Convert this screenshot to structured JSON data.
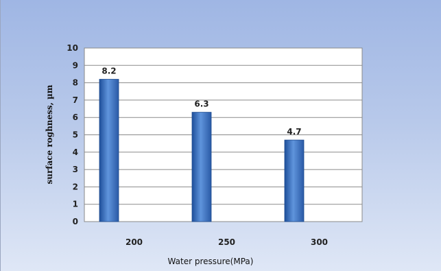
{
  "chart_data": {
    "type": "bar",
    "categories": [
      "200",
      "250",
      "300"
    ],
    "values": [
      8.2,
      6.3,
      4.7
    ],
    "data_labels": [
      "8.2",
      "6.3",
      "4.7"
    ],
    "title": "",
    "xlabel": "Water pressure(MPa)",
    "ylabel": "surface roghness, µm",
    "ylim": [
      0,
      10
    ],
    "yticks": [
      0,
      1,
      2,
      3,
      4,
      5,
      6,
      7,
      8,
      9,
      10
    ],
    "grid": true,
    "legend": "none",
    "bar_color": "#3f73c0"
  }
}
